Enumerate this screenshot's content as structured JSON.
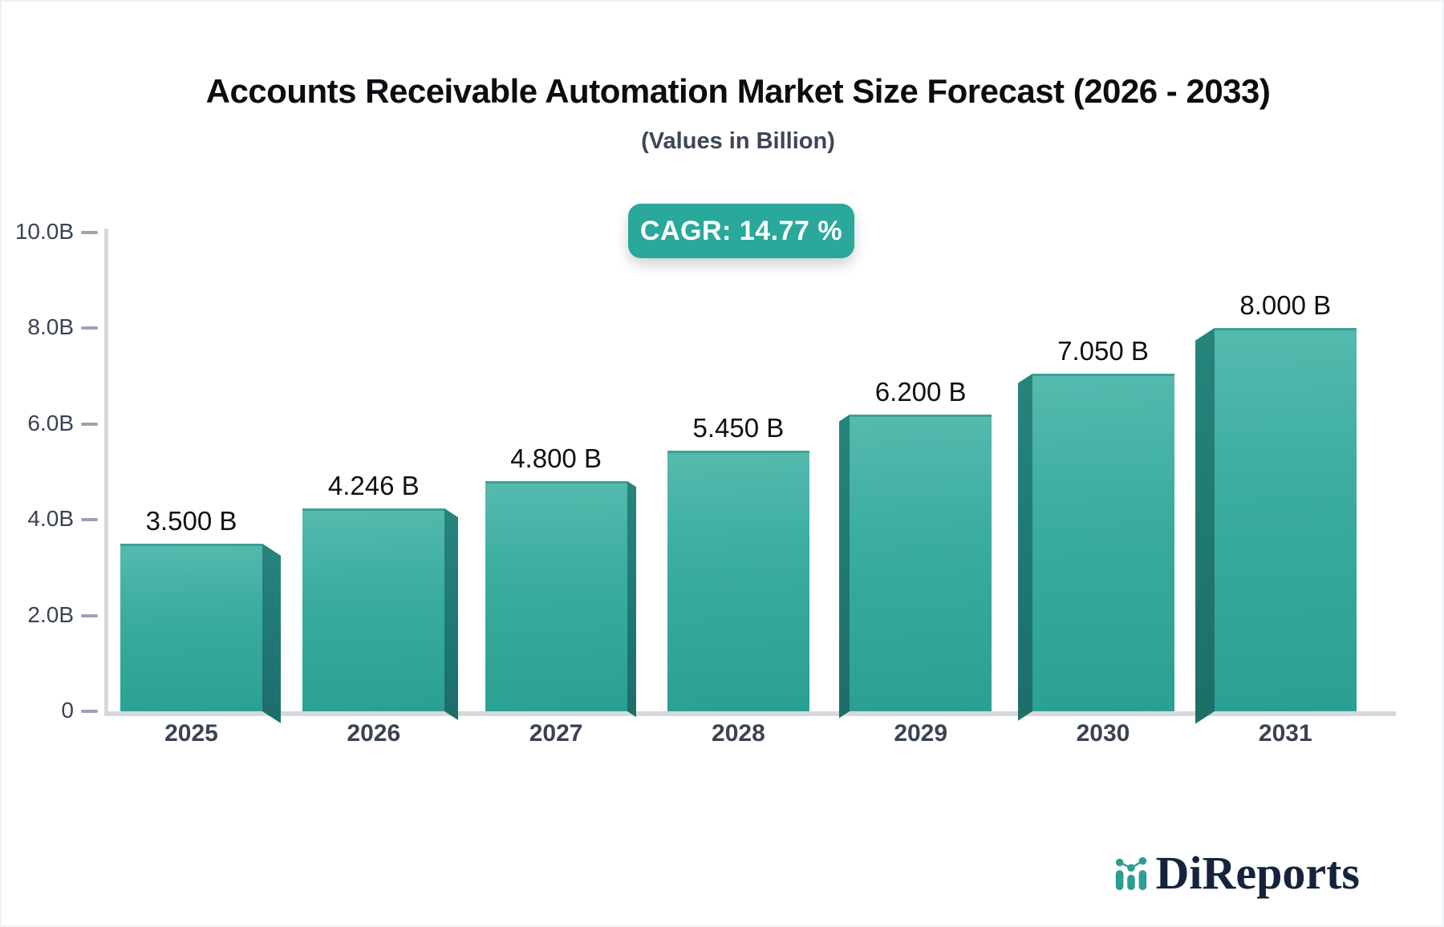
{
  "header": {
    "title": "Accounts Receivable Automation Market Size Forecast (2026 - 2033)",
    "subtitle": "(Values in Billion)"
  },
  "badge": {
    "label": "CAGR: 14.77 %"
  },
  "logo": {
    "name": "DiReports",
    "icon": "bar-line-chart-icon"
  },
  "colors": {
    "accent_teal": "#2aa89b",
    "bar_face": "#3aaca0",
    "bar_face_light": "#55bbae",
    "bar_side_dark": "#1e7a73",
    "axis_line": "#d5d9e0",
    "tick_dash": "#9ba3af",
    "axis_text": "#3a4350",
    "value_text": "#101114",
    "title_text": "#0c0d10",
    "logo_navy": "#16233b",
    "logo_teal": "#2d9e93",
    "badge_text": "#ffffff"
  },
  "chart_data": {
    "type": "bar",
    "title": "Accounts Receivable Automation Market Size Forecast (2026 - 2033)",
    "subtitle": "(Values in Billion)",
    "categories": [
      "2025",
      "2026",
      "2027",
      "2028",
      "2029",
      "2030",
      "2031"
    ],
    "values": [
      3.5,
      4.246,
      4.8,
      5.45,
      6.2,
      7.05,
      8.0
    ],
    "bar_labels": [
      "3.500 B",
      "4.246 B",
      "4.800 B",
      "5.450 B",
      "6.200 B",
      "7.050 B",
      "8.000 B"
    ],
    "xlabel": "",
    "ylabel": "",
    "ylim": [
      0,
      10
    ],
    "y_tick_values": [
      0,
      2,
      4,
      6,
      8,
      10
    ],
    "y_tick_labels": [
      "0",
      "2.0B",
      "4.0B",
      "6.0B",
      "8.0B",
      "10.0B"
    ],
    "grid": "off",
    "legend": "none",
    "annotations": [
      "CAGR: 14.77 %"
    ],
    "bar_style": "3d-perspective"
  }
}
